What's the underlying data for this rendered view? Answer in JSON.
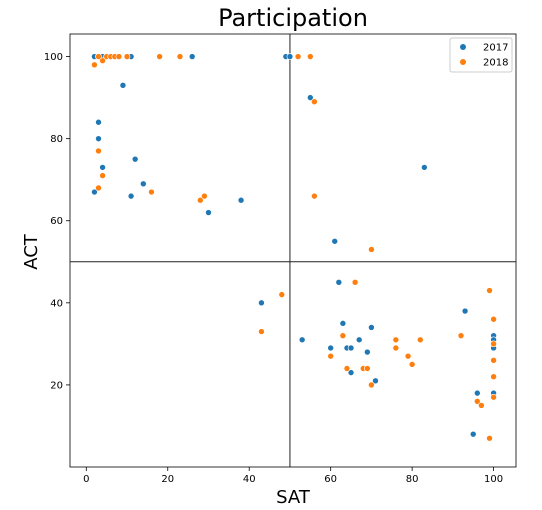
{
  "chart_data": {
    "type": "scatter",
    "title": "Participation",
    "xlabel": "SAT",
    "ylabel": "ACT",
    "xlim": [
      -4,
      105.5
    ],
    "ylim": [
      0,
      105.5
    ],
    "xticks": [
      0,
      20,
      40,
      60,
      80,
      100
    ],
    "yticks": [
      20,
      40,
      60,
      80,
      100
    ],
    "reference_lines": {
      "x": 50,
      "y": 50
    },
    "legend_position": "top-right",
    "grid": false,
    "series": [
      {
        "name": "2017",
        "color": "#1f77b4",
        "points": [
          [
            2,
            100
          ],
          [
            3,
            100
          ],
          [
            4,
            100
          ],
          [
            5,
            100
          ],
          [
            6,
            100
          ],
          [
            7,
            100
          ],
          [
            8,
            100
          ],
          [
            10,
            100
          ],
          [
            11,
            100
          ],
          [
            26,
            100
          ],
          [
            49,
            100
          ],
          [
            50,
            100
          ],
          [
            9,
            93
          ],
          [
            55,
            90
          ],
          [
            3,
            84
          ],
          [
            3,
            80
          ],
          [
            83,
            73
          ],
          [
            4,
            73
          ],
          [
            12,
            75
          ],
          [
            14,
            69
          ],
          [
            2,
            67
          ],
          [
            11,
            66
          ],
          [
            38,
            65
          ],
          [
            30,
            62
          ],
          [
            61,
            55
          ],
          [
            43,
            40
          ],
          [
            53,
            31
          ],
          [
            62,
            45
          ],
          [
            63,
            35
          ],
          [
            64,
            29
          ],
          [
            65,
            29
          ],
          [
            60,
            29
          ],
          [
            67,
            31
          ],
          [
            69,
            28
          ],
          [
            70,
            34
          ],
          [
            65,
            23
          ],
          [
            71,
            21
          ],
          [
            76,
            29
          ],
          [
            93,
            38
          ],
          [
            96,
            18
          ],
          [
            95,
            8
          ],
          [
            100,
            32
          ],
          [
            100,
            31
          ],
          [
            100,
            30
          ],
          [
            100,
            29
          ],
          [
            100,
            18
          ]
        ]
      },
      {
        "name": "2018",
        "color": "#ff7f0e",
        "points": [
          [
            2,
            98
          ],
          [
            3,
            100
          ],
          [
            4,
            99
          ],
          [
            5,
            100
          ],
          [
            6,
            100
          ],
          [
            7,
            100
          ],
          [
            8,
            100
          ],
          [
            10,
            100
          ],
          [
            18,
            100
          ],
          [
            23,
            100
          ],
          [
            52,
            100
          ],
          [
            55,
            100
          ],
          [
            56,
            89
          ],
          [
            3,
            77
          ],
          [
            4,
            71
          ],
          [
            3,
            68
          ],
          [
            16,
            67
          ],
          [
            28,
            65
          ],
          [
            29,
            66
          ],
          [
            56,
            66
          ],
          [
            70,
            53
          ],
          [
            48,
            42
          ],
          [
            43,
            33
          ],
          [
            66,
            45
          ],
          [
            63,
            32
          ],
          [
            60,
            27
          ],
          [
            64,
            24
          ],
          [
            68,
            24
          ],
          [
            69,
            24
          ],
          [
            70,
            20
          ],
          [
            76,
            31
          ],
          [
            76,
            29
          ],
          [
            79,
            27
          ],
          [
            80,
            25
          ],
          [
            82,
            31
          ],
          [
            92,
            32
          ],
          [
            96,
            16
          ],
          [
            97,
            15
          ],
          [
            99,
            43
          ],
          [
            100,
            36
          ],
          [
            100,
            30
          ],
          [
            100,
            26
          ],
          [
            100,
            22
          ],
          [
            100,
            17
          ],
          [
            99,
            7
          ]
        ]
      }
    ]
  }
}
